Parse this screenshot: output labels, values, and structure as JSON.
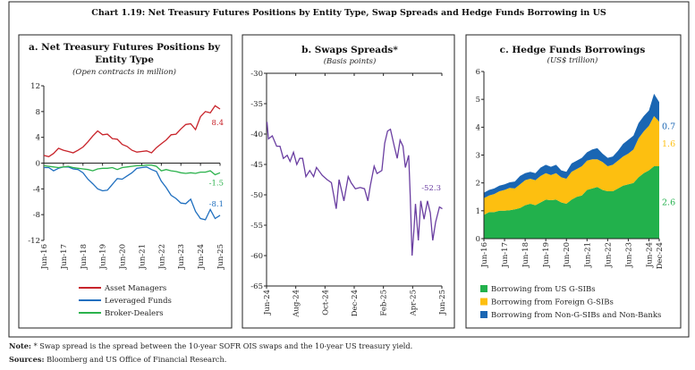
{
  "figure_title": "Chart 1.19: Net Treasury Futures Positions by Entity Type, Swap Spreads and Hedge Funds Borrowing in US",
  "note_label": "Note:",
  "note_text": "* Swap spread is the spread between the 10-year SOFR OIS swaps and the 10-year US treasury yield.",
  "sources_label": "Sources:",
  "sources_text": "Bloomberg and US Office of Financial Research.",
  "chart_data": [
    {
      "type": "line",
      "title_line1": "a. Net Treasury Futures Positions by",
      "title_line2": "Entity Type",
      "subtitle": "(Open contracts in million)",
      "ylim": [
        -12,
        12
      ],
      "yticks": [
        "12",
        "8",
        "4",
        "0",
        "-4",
        "-8",
        "-12"
      ],
      "ytick_values": [
        12,
        8,
        4,
        0,
        -4,
        -8,
        -12
      ],
      "xticks": [
        "Jun-16",
        "Jun-17",
        "Jun-18",
        "Jun-19",
        "Jun-20",
        "Jun-21",
        "Jun-22",
        "Jun-23",
        "Jun-24",
        "Jun-25"
      ],
      "x_start": "Jun-16",
      "x_end": "Jun-25",
      "x_frequency": "quarterly",
      "legend_position": "bottom",
      "series": [
        {
          "name": "Asset Managers",
          "color": "#c8242b",
          "end_label": "8.4",
          "values": [
            1.2,
            1.0,
            1.5,
            2.3,
            2.0,
            1.8,
            1.6,
            2.0,
            2.5,
            3.3,
            4.2,
            5.0,
            4.4,
            4.5,
            3.8,
            3.7,
            2.9,
            2.6,
            2.0,
            1.7,
            1.8,
            1.9,
            1.6,
            2.4,
            3.0,
            3.6,
            4.4,
            4.5,
            5.3,
            6.0,
            6.1,
            5.2,
            7.2,
            8.0,
            7.8,
            8.9,
            8.4
          ]
        },
        {
          "name": "Leveraged Funds",
          "color": "#1f6fbf",
          "end_label": "-8.1",
          "values": [
            -0.7,
            -0.7,
            -1.2,
            -0.8,
            -0.6,
            -0.6,
            -0.9,
            -1.0,
            -1.5,
            -2.5,
            -3.2,
            -4.0,
            -4.3,
            -4.2,
            -3.3,
            -2.4,
            -2.5,
            -2.0,
            -1.5,
            -0.8,
            -0.7,
            -0.6,
            -1.0,
            -1.3,
            -2.8,
            -3.8,
            -5.0,
            -5.5,
            -6.2,
            -6.3,
            -5.6,
            -7.5,
            -8.6,
            -8.8,
            -7.2,
            -8.6,
            -8.1
          ]
        },
        {
          "name": "Broker-Dealers",
          "color": "#2bb24c",
          "end_label": "-1.5",
          "values": [
            -0.4,
            -0.5,
            -0.6,
            -0.7,
            -0.6,
            -0.5,
            -0.7,
            -0.8,
            -0.9,
            -1.0,
            -1.2,
            -0.9,
            -0.8,
            -0.8,
            -0.7,
            -1.0,
            -0.7,
            -0.6,
            -0.5,
            -0.4,
            -0.4,
            -0.3,
            -0.3,
            -0.5,
            -1.2,
            -1.0,
            -1.2,
            -1.3,
            -1.5,
            -1.6,
            -1.5,
            -1.6,
            -1.4,
            -1.4,
            -1.2,
            -1.8,
            -1.5
          ]
        }
      ]
    },
    {
      "type": "line",
      "title": "b. Swaps Spreads*",
      "subtitle": "(Basis points)",
      "ylim": [
        -65,
        -30
      ],
      "yticks": [
        "-30",
        "-35",
        "-40",
        "-45",
        "-50",
        "-55",
        "-60",
        "-65"
      ],
      "ytick_values": [
        -30,
        -35,
        -40,
        -45,
        -50,
        -55,
        -60,
        -65
      ],
      "xticks": [
        "Jun-24",
        "Aug-24",
        "Oct-24",
        "Dec-24",
        "Feb-25",
        "Apr-25",
        "Jun-25"
      ],
      "xlim": [
        "2024-06-01",
        "2025-06-01"
      ],
      "series": [
        {
          "color": "#6a3ea1",
          "end_label": "-52.3",
          "x": [
            "2024-06-02",
            "2024-06-05",
            "2024-06-13",
            "2024-06-22",
            "2024-06-29",
            "2024-07-06",
            "2024-07-14",
            "2024-07-20",
            "2024-07-27",
            "2024-08-03",
            "2024-08-09",
            "2024-08-15",
            "2024-08-22",
            "2024-08-30",
            "2024-09-07",
            "2024-09-13",
            "2024-09-25",
            "2024-10-05",
            "2024-10-14",
            "2024-10-24",
            "2024-10-30",
            "2024-11-09",
            "2024-11-18",
            "2024-11-24",
            "2024-12-03",
            "2024-12-13",
            "2024-12-22",
            "2024-12-29",
            "2025-01-03",
            "2025-01-11",
            "2025-01-17",
            "2025-01-27",
            "2025-02-02",
            "2025-02-08",
            "2025-02-14",
            "2025-02-22",
            "2025-02-28",
            "2025-03-06",
            "2025-03-12",
            "2025-03-17",
            "2025-03-24",
            "2025-03-27",
            "2025-03-31",
            "2025-04-04",
            "2025-04-07",
            "2025-04-13",
            "2025-04-18",
            "2025-04-25",
            "2025-05-02",
            "2025-05-08",
            "2025-05-13",
            "2025-05-19",
            "2025-05-27",
            "2025-06-02"
          ],
          "y": [
            -38,
            -40.8,
            -40.3,
            -42,
            -42,
            -44,
            -43.5,
            -44.5,
            -43,
            -45,
            -44,
            -44,
            -47,
            -46,
            -47,
            -45.5,
            -46.8,
            -47.5,
            -48,
            -52.3,
            -47.5,
            -51,
            -47,
            -48,
            -49,
            -48.8,
            -49,
            -51,
            -48.5,
            -45.3,
            -46.5,
            -46,
            -41.5,
            -39.5,
            -39.2,
            -42,
            -44,
            -41,
            -42,
            -45.5,
            -43.5,
            -50,
            -60,
            -55.5,
            -51.5,
            -57.5,
            -51,
            -54,
            -51,
            -53,
            -57.5,
            -54.5,
            -52,
            -52.3
          ]
        }
      ]
    },
    {
      "type": "area",
      "stacked": true,
      "title": "c. Hedge Funds Borrowings",
      "subtitle": "(US$ trillion)",
      "ylim": [
        0,
        6
      ],
      "yticks": [
        "6",
        "5",
        "4",
        "3",
        "2",
        "1",
        "0"
      ],
      "ytick_values": [
        6,
        5,
        4,
        3,
        2,
        1,
        0
      ],
      "xticks": [
        "Jun-16",
        "Jun-17",
        "Jun-18",
        "Jun-19",
        "Jun-20",
        "Jun-21",
        "Jun-22",
        "Jun-23",
        "Jun-24",
        "Dec-24"
      ],
      "x_start": "Jun-16",
      "x_end": "Dec-24",
      "x_frequency": "quarterly",
      "legend_position": "bottom",
      "series": [
        {
          "name": "Borrowing from US G-SIBs",
          "color": "#22b14c",
          "end_label": "2.6",
          "values": [
            0.85,
            0.95,
            0.95,
            1.0,
            1.0,
            1.02,
            1.05,
            1.1,
            1.2,
            1.25,
            1.2,
            1.3,
            1.4,
            1.38,
            1.4,
            1.3,
            1.25,
            1.4,
            1.5,
            1.55,
            1.75,
            1.8,
            1.85,
            1.75,
            1.7,
            1.7,
            1.8,
            1.9,
            1.95,
            2.0,
            2.2,
            2.35,
            2.45,
            2.6,
            2.6
          ]
        },
        {
          "name": "Borrowing from Foreign G-SIBs",
          "color": "#fdbf10",
          "end_label": "1.6",
          "values": [
            0.6,
            0.6,
            0.65,
            0.7,
            0.75,
            0.8,
            0.75,
            0.85,
            0.9,
            0.9,
            0.9,
            0.95,
            0.95,
            0.9,
            0.95,
            0.9,
            0.9,
            1.0,
            1.0,
            1.05,
            1.05,
            1.05,
            1.0,
            1.0,
            0.9,
            0.95,
            1.0,
            1.05,
            1.1,
            1.2,
            1.4,
            1.5,
            1.6,
            1.8,
            1.6
          ]
        },
        {
          "name": "Borrowing from Non-G-SIBs and Non-Banks",
          "color": "#1a66b3",
          "end_label": "0.7",
          "values": [
            0.2,
            0.2,
            0.2,
            0.2,
            0.2,
            0.2,
            0.25,
            0.3,
            0.25,
            0.25,
            0.25,
            0.3,
            0.3,
            0.3,
            0.3,
            0.25,
            0.25,
            0.3,
            0.3,
            0.3,
            0.3,
            0.35,
            0.4,
            0.3,
            0.3,
            0.3,
            0.35,
            0.45,
            0.5,
            0.5,
            0.55,
            0.55,
            0.55,
            0.8,
            0.7
          ]
        }
      ]
    }
  ]
}
